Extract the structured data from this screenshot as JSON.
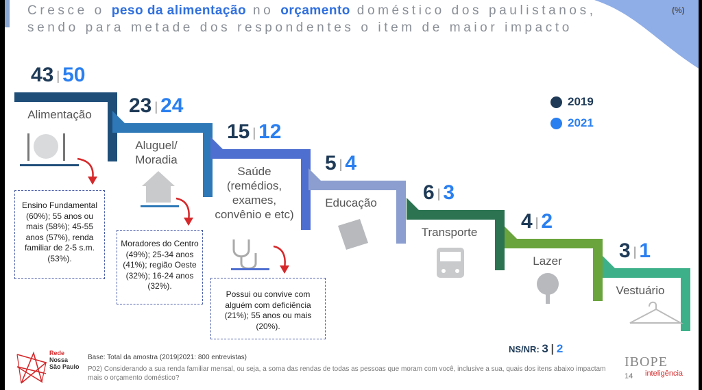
{
  "title": {
    "part1": "Cresce o",
    "highlight1": "peso da alimentação",
    "part2": "no",
    "highlight2": "orçamento",
    "part3": "doméstico dos paulistanos, sendo para metade dos respondentes o item de maior impacto"
  },
  "unit": "(%)",
  "chart_data": {
    "type": "bar",
    "legend": [
      {
        "label": "2019",
        "color": "#1e3a57"
      },
      {
        "label": "2021",
        "color": "#2a7ff0"
      }
    ],
    "categories": [
      {
        "label": [
          "Alimentação"
        ],
        "v2019": 43,
        "v2021": 50,
        "color": "#1f4e79",
        "icon": "cutlery-plate-icon"
      },
      {
        "label": [
          "Aluguel/",
          "Moradia"
        ],
        "v2019": 23,
        "v2021": 24,
        "color": "#2e78b7",
        "icon": "house-icon"
      },
      {
        "label": [
          "Saúde",
          "(remédios,",
          "exames,",
          "convênio e etc)"
        ],
        "v2019": 15,
        "v2021": 12,
        "color": "#4f6fd0",
        "icon": "stethoscope-icon"
      },
      {
        "label": [
          "Educação"
        ],
        "v2019": 5,
        "v2021": 4,
        "color": "#8c9ecf",
        "icon": "book-icon"
      },
      {
        "label": [
          "Transporte"
        ],
        "v2019": 6,
        "v2021": 3,
        "color": "#2c7352",
        "icon": "bus-icon"
      },
      {
        "label": [
          "Lazer"
        ],
        "v2019": 4,
        "v2021": 2,
        "color": "#6aa43c",
        "icon": "tree-icon"
      },
      {
        "label": [
          "Vestuário"
        ],
        "v2019": 3,
        "v2021": 1,
        "color": "#3db08a",
        "icon": "hanger-icon"
      }
    ],
    "separator": "|"
  },
  "notes": {
    "alimentacao": "Ensino Fundamental (60%); 55 anos ou mais (58%); 45-55 anos (57%), renda familiar de 2-5 s.m. (53%).",
    "aluguel": "Moradores do Centro (49%); 25-34 anos (41%); região Oeste (32%); 16-24 anos (32%).",
    "saude": "Possui ou convive com alguém com deficiência (21%); 55 anos ou mais (20%)."
  },
  "nsnr": {
    "label": "NS/NR:",
    "v2019": "3",
    "sep": "|",
    "v2021": "2"
  },
  "footer": {
    "logo_line1": "Rede",
    "logo_line2": "Nossa",
    "logo_line3": "São Paulo",
    "base": "Base: Total da amostra (2019|2021: 800 entrevistas)",
    "question": "P02) Considerando a sua renda familiar mensal, ou seja, a soma das rendas de todas as pessoas que moram com você, inclusive a sua, quais dos itens abaixo impactam mais o orçamento doméstico?",
    "brand": "IBOPE",
    "brand_sub": "inteligência",
    "page": "14"
  }
}
